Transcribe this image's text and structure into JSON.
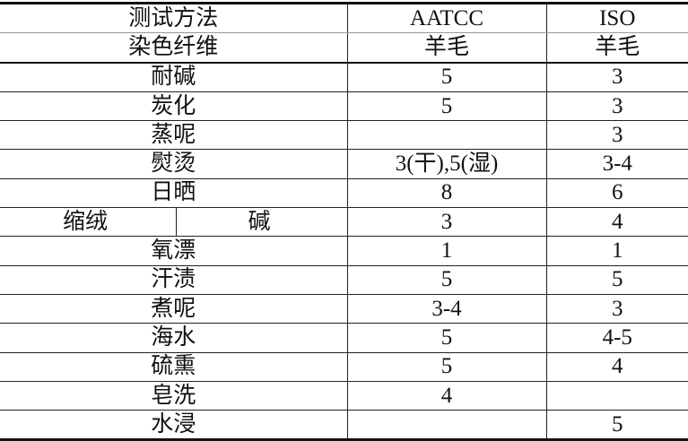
{
  "header": {
    "method_label": "测试方法",
    "fiber_label": "染色纤维",
    "columns": [
      "AATCC",
      "ISO"
    ],
    "fibers": [
      "羊毛",
      "羊毛"
    ]
  },
  "rows": [
    {
      "label": "耐碱",
      "aatcc": "5",
      "iso": "3"
    },
    {
      "label": "炭化",
      "aatcc": "5",
      "iso": "3"
    },
    {
      "label": "蒸呢",
      "aatcc": "",
      "iso": "3"
    },
    {
      "label": "熨烫",
      "aatcc": "3(干),5(湿)",
      "iso": "3-4"
    },
    {
      "label": "日晒",
      "aatcc": "8",
      "iso": "6"
    },
    {
      "label": "缩绒",
      "sublabel": "碱",
      "aatcc": "3",
      "iso": "4"
    },
    {
      "label": "氧漂",
      "aatcc": "1",
      "iso": "1"
    },
    {
      "label": "汗渍",
      "aatcc": "5",
      "iso": "5"
    },
    {
      "label": "煮呢",
      "aatcc": "3-4",
      "iso": "3"
    },
    {
      "label": "海水",
      "aatcc": "5",
      "iso": "4-5"
    },
    {
      "label": "硫熏",
      "aatcc": "5",
      "iso": "4"
    },
    {
      "label": "皂洗",
      "aatcc": "4",
      "iso": ""
    },
    {
      "label": "水浸",
      "aatcc": "",
      "iso": "5"
    }
  ]
}
